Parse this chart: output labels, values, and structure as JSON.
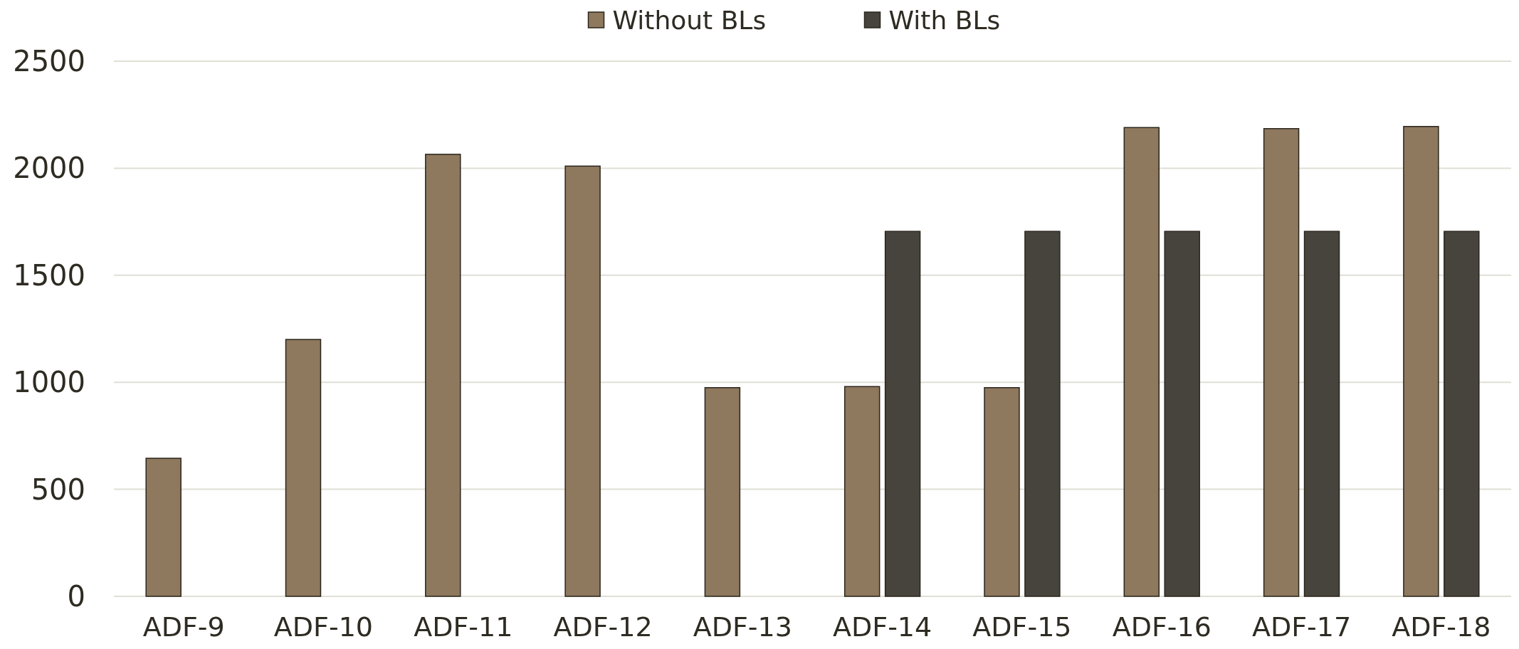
{
  "chart_data": {
    "type": "bar",
    "categories": [
      "ADF-9",
      "ADF-10",
      "ADF-11",
      "ADF-12",
      "ADF-13",
      "ADF-14",
      "ADF-15",
      "ADF-16",
      "ADF-17",
      "ADF-18"
    ],
    "series": [
      {
        "name": "Without BLs",
        "color": "#8e785e",
        "values": [
          645,
          1200,
          2065,
          2010,
          975,
          980,
          975,
          2190,
          2185,
          2195
        ]
      },
      {
        "name": "With BLs",
        "color": "#47443d",
        "values": [
          null,
          null,
          null,
          null,
          null,
          1705,
          1705,
          1705,
          1705,
          1705
        ]
      }
    ],
    "ylim": [
      0,
      2500
    ],
    "yticks": [
      0,
      500,
      1000,
      1500,
      2000,
      2500
    ],
    "grid": "y",
    "legend": "top"
  }
}
